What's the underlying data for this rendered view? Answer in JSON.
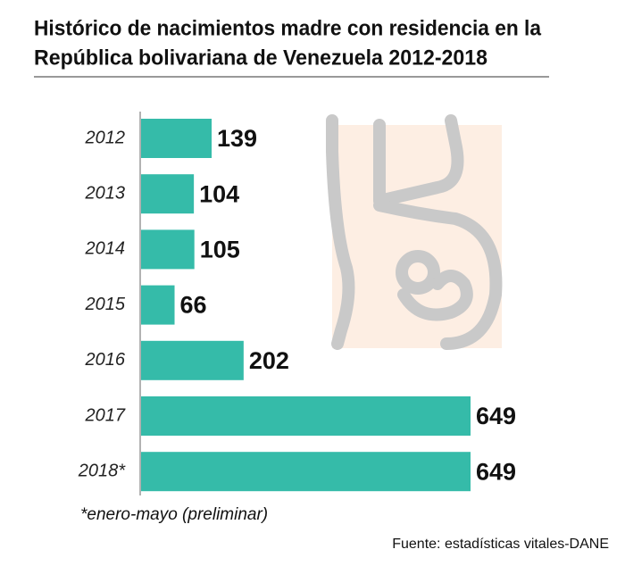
{
  "chart_data": {
    "type": "bar",
    "orientation": "horizontal",
    "title": [
      "Histórico de nacimientos madre con residencia en la",
      "República bolivariana de Venezuela 2012-2018"
    ],
    "categories": [
      "2012",
      "2013",
      "2014",
      "2015",
      "2016",
      "2017",
      "2018*"
    ],
    "values": [
      139,
      104,
      105,
      66,
      202,
      649,
      649
    ],
    "color": "#35bba9",
    "note": "*enero-mayo (preliminar)",
    "source": "Fuente: estadísticas vitales-DANE"
  }
}
